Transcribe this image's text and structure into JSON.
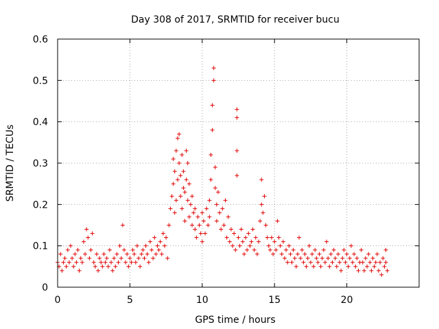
{
  "chart_data": {
    "type": "scatter",
    "title": "Day 308 of 2017, SRMTID for receiver bucu",
    "xlabel": "GPS time / hours",
    "ylabel": "SRMTID / TECUs",
    "xlim": [
      0,
      25
    ],
    "ylim": [
      0,
      0.6
    ],
    "xticks": [
      0,
      5,
      10,
      15,
      20
    ],
    "yticks": [
      0,
      0.1,
      0.2,
      0.3,
      0.4,
      0.5,
      0.6
    ],
    "xtick_labels": [
      "0",
      "5",
      "10",
      "15",
      "20"
    ],
    "ytick_labels": [
      "0",
      "0.1",
      "0.2",
      "0.3",
      "0.4",
      "0.5",
      "0.6"
    ],
    "grid": true,
    "marker": "+",
    "series": [
      {
        "name": "SRMTID",
        "color": "#e00000",
        "points": [
          [
            0.0,
            0.06
          ],
          [
            0.1,
            0.05
          ],
          [
            0.2,
            0.08
          ],
          [
            0.3,
            0.04
          ],
          [
            0.4,
            0.06
          ],
          [
            0.5,
            0.07
          ],
          [
            0.6,
            0.05
          ],
          [
            0.7,
            0.09
          ],
          [
            0.8,
            0.06
          ],
          [
            0.9,
            0.1
          ],
          [
            1.0,
            0.07
          ],
          [
            1.1,
            0.05
          ],
          [
            1.2,
            0.08
          ],
          [
            1.3,
            0.06
          ],
          [
            1.4,
            0.09
          ],
          [
            1.5,
            0.04
          ],
          [
            1.6,
            0.07
          ],
          [
            1.7,
            0.06
          ],
          [
            1.8,
            0.11
          ],
          [
            1.9,
            0.08
          ],
          [
            2.0,
            0.14
          ],
          [
            2.1,
            0.12
          ],
          [
            2.2,
            0.07
          ],
          [
            2.3,
            0.09
          ],
          [
            2.4,
            0.13
          ],
          [
            2.5,
            0.06
          ],
          [
            2.6,
            0.05
          ],
          [
            2.7,
            0.08
          ],
          [
            2.8,
            0.04
          ],
          [
            2.9,
            0.07
          ],
          [
            3.0,
            0.06
          ],
          [
            3.1,
            0.05
          ],
          [
            3.2,
            0.08
          ],
          [
            3.3,
            0.06
          ],
          [
            3.4,
            0.07
          ],
          [
            3.5,
            0.05
          ],
          [
            3.6,
            0.09
          ],
          [
            3.7,
            0.06
          ],
          [
            3.8,
            0.04
          ],
          [
            3.9,
            0.07
          ],
          [
            4.0,
            0.05
          ],
          [
            4.1,
            0.08
          ],
          [
            4.2,
            0.06
          ],
          [
            4.3,
            0.1
          ],
          [
            4.4,
            0.07
          ],
          [
            4.5,
            0.15
          ],
          [
            4.6,
            0.09
          ],
          [
            4.7,
            0.06
          ],
          [
            4.8,
            0.08
          ],
          [
            4.9,
            0.05
          ],
          [
            5.0,
            0.07
          ],
          [
            5.1,
            0.06
          ],
          [
            5.2,
            0.09
          ],
          [
            5.3,
            0.08
          ],
          [
            5.4,
            0.06
          ],
          [
            5.5,
            0.1
          ],
          [
            5.6,
            0.07
          ],
          [
            5.7,
            0.05
          ],
          [
            5.8,
            0.08
          ],
          [
            5.9,
            0.09
          ],
          [
            6.0,
            0.07
          ],
          [
            6.1,
            0.1
          ],
          [
            6.2,
            0.08
          ],
          [
            6.3,
            0.06
          ],
          [
            6.4,
            0.11
          ],
          [
            6.5,
            0.09
          ],
          [
            6.6,
            0.07
          ],
          [
            6.7,
            0.12
          ],
          [
            6.8,
            0.08
          ],
          [
            6.9,
            0.1
          ],
          [
            7.0,
            0.09
          ],
          [
            7.1,
            0.11
          ],
          [
            7.2,
            0.08
          ],
          [
            7.3,
            0.13
          ],
          [
            7.4,
            0.1
          ],
          [
            7.5,
            0.12
          ],
          [
            7.6,
            0.07
          ],
          [
            7.7,
            0.15
          ],
          [
            7.8,
            0.19
          ],
          [
            7.9,
            0.22
          ],
          [
            8.0,
            0.25
          ],
          [
            8.0,
            0.31
          ],
          [
            8.1,
            0.18
          ],
          [
            8.1,
            0.28
          ],
          [
            8.2,
            0.33
          ],
          [
            8.2,
            0.21
          ],
          [
            8.3,
            0.36
          ],
          [
            8.3,
            0.26
          ],
          [
            8.4,
            0.37
          ],
          [
            8.4,
            0.3
          ],
          [
            8.5,
            0.27
          ],
          [
            8.5,
            0.22
          ],
          [
            8.6,
            0.32
          ],
          [
            8.6,
            0.19
          ],
          [
            8.7,
            0.24
          ],
          [
            8.7,
            0.28
          ],
          [
            8.8,
            0.23
          ],
          [
            8.8,
            0.16
          ],
          [
            8.9,
            0.33
          ],
          [
            8.9,
            0.26
          ],
          [
            9.0,
            0.21
          ],
          [
            9.0,
            0.3
          ],
          [
            9.1,
            0.17
          ],
          [
            9.1,
            0.25
          ],
          [
            9.2,
            0.2
          ],
          [
            9.3,
            0.15
          ],
          [
            9.3,
            0.22
          ],
          [
            9.4,
            0.18
          ],
          [
            9.5,
            0.14
          ],
          [
            9.5,
            0.19
          ],
          [
            9.6,
            0.12
          ],
          [
            9.7,
            0.17
          ],
          [
            9.8,
            0.15
          ],
          [
            9.9,
            0.13
          ],
          [
            10.0,
            0.18
          ],
          [
            10.0,
            0.11
          ],
          [
            10.1,
            0.16
          ],
          [
            10.2,
            0.13
          ],
          [
            10.3,
            0.19
          ],
          [
            10.4,
            0.15
          ],
          [
            10.5,
            0.21
          ],
          [
            10.5,
            0.17
          ],
          [
            10.6,
            0.26
          ],
          [
            10.6,
            0.32
          ],
          [
            10.7,
            0.38
          ],
          [
            10.7,
            0.44
          ],
          [
            10.8,
            0.5
          ],
          [
            10.8,
            0.53
          ],
          [
            10.9,
            0.29
          ],
          [
            10.9,
            0.24
          ],
          [
            11.0,
            0.2
          ],
          [
            11.0,
            0.16
          ],
          [
            11.1,
            0.23
          ],
          [
            11.2,
            0.18
          ],
          [
            11.3,
            0.14
          ],
          [
            11.4,
            0.19
          ],
          [
            11.5,
            0.15
          ],
          [
            11.6,
            0.21
          ],
          [
            11.7,
            0.12
          ],
          [
            11.8,
            0.17
          ],
          [
            11.9,
            0.11
          ],
          [
            12.0,
            0.14
          ],
          [
            12.1,
            0.1
          ],
          [
            12.2,
            0.13
          ],
          [
            12.3,
            0.09
          ],
          [
            12.4,
            0.43
          ],
          [
            12.4,
            0.41
          ],
          [
            12.4,
            0.33
          ],
          [
            12.4,
            0.27
          ],
          [
            12.5,
            0.12
          ],
          [
            12.6,
            0.1
          ],
          [
            12.7,
            0.14
          ],
          [
            12.8,
            0.11
          ],
          [
            12.9,
            0.08
          ],
          [
            13.0,
            0.12
          ],
          [
            13.1,
            0.09
          ],
          [
            13.2,
            0.13
          ],
          [
            13.3,
            0.1
          ],
          [
            13.4,
            0.11
          ],
          [
            13.5,
            0.14
          ],
          [
            13.6,
            0.09
          ],
          [
            13.7,
            0.12
          ],
          [
            13.8,
            0.08
          ],
          [
            13.9,
            0.11
          ],
          [
            14.0,
            0.16
          ],
          [
            14.1,
            0.26
          ],
          [
            14.1,
            0.2
          ],
          [
            14.2,
            0.18
          ],
          [
            14.3,
            0.22
          ],
          [
            14.4,
            0.15
          ],
          [
            14.5,
            0.12
          ],
          [
            14.6,
            0.1
          ],
          [
            14.7,
            0.09
          ],
          [
            14.8,
            0.12
          ],
          [
            14.9,
            0.08
          ],
          [
            15.0,
            0.11
          ],
          [
            15.1,
            0.09
          ],
          [
            15.2,
            0.16
          ],
          [
            15.3,
            0.12
          ],
          [
            15.4,
            0.1
          ],
          [
            15.5,
            0.08
          ],
          [
            15.6,
            0.11
          ],
          [
            15.7,
            0.07
          ],
          [
            15.8,
            0.09
          ],
          [
            15.9,
            0.06
          ],
          [
            16.0,
            0.1
          ],
          [
            16.1,
            0.08
          ],
          [
            16.2,
            0.06
          ],
          [
            16.3,
            0.09
          ],
          [
            16.4,
            0.07
          ],
          [
            16.5,
            0.05
          ],
          [
            16.6,
            0.08
          ],
          [
            16.7,
            0.12
          ],
          [
            16.8,
            0.07
          ],
          [
            16.9,
            0.09
          ],
          [
            17.0,
            0.06
          ],
          [
            17.1,
            0.08
          ],
          [
            17.2,
            0.05
          ],
          [
            17.3,
            0.07
          ],
          [
            17.4,
            0.1
          ],
          [
            17.5,
            0.06
          ],
          [
            17.6,
            0.08
          ],
          [
            17.7,
            0.05
          ],
          [
            17.8,
            0.09
          ],
          [
            17.9,
            0.07
          ],
          [
            18.0,
            0.06
          ],
          [
            18.1,
            0.08
          ],
          [
            18.2,
            0.05
          ],
          [
            18.3,
            0.07
          ],
          [
            18.4,
            0.09
          ],
          [
            18.5,
            0.06
          ],
          [
            18.6,
            0.11
          ],
          [
            18.7,
            0.07
          ],
          [
            18.8,
            0.05
          ],
          [
            18.9,
            0.08
          ],
          [
            19.0,
            0.06
          ],
          [
            19.1,
            0.09
          ],
          [
            19.2,
            0.07
          ],
          [
            19.3,
            0.05
          ],
          [
            19.4,
            0.08
          ],
          [
            19.5,
            0.06
          ],
          [
            19.6,
            0.04
          ],
          [
            19.7,
            0.07
          ],
          [
            19.8,
            0.09
          ],
          [
            19.9,
            0.06
          ],
          [
            20.0,
            0.08
          ],
          [
            20.1,
            0.05
          ],
          [
            20.2,
            0.07
          ],
          [
            20.3,
            0.1
          ],
          [
            20.4,
            0.06
          ],
          [
            20.5,
            0.08
          ],
          [
            20.6,
            0.05
          ],
          [
            20.7,
            0.07
          ],
          [
            20.8,
            0.04
          ],
          [
            20.9,
            0.06
          ],
          [
            21.0,
            0.09
          ],
          [
            21.1,
            0.06
          ],
          [
            21.2,
            0.04
          ],
          [
            21.3,
            0.07
          ],
          [
            21.4,
            0.05
          ],
          [
            21.5,
            0.08
          ],
          [
            21.6,
            0.06
          ],
          [
            21.7,
            0.04
          ],
          [
            21.8,
            0.07
          ],
          [
            21.9,
            0.05
          ],
          [
            22.0,
            0.06
          ],
          [
            22.1,
            0.08
          ],
          [
            22.2,
            0.04
          ],
          [
            22.3,
            0.06
          ],
          [
            22.4,
            0.03
          ],
          [
            22.5,
            0.07
          ],
          [
            22.6,
            0.05
          ],
          [
            22.7,
            0.06
          ],
          [
            22.7,
            0.09
          ],
          [
            22.8,
            0.04
          ]
        ]
      }
    ]
  }
}
